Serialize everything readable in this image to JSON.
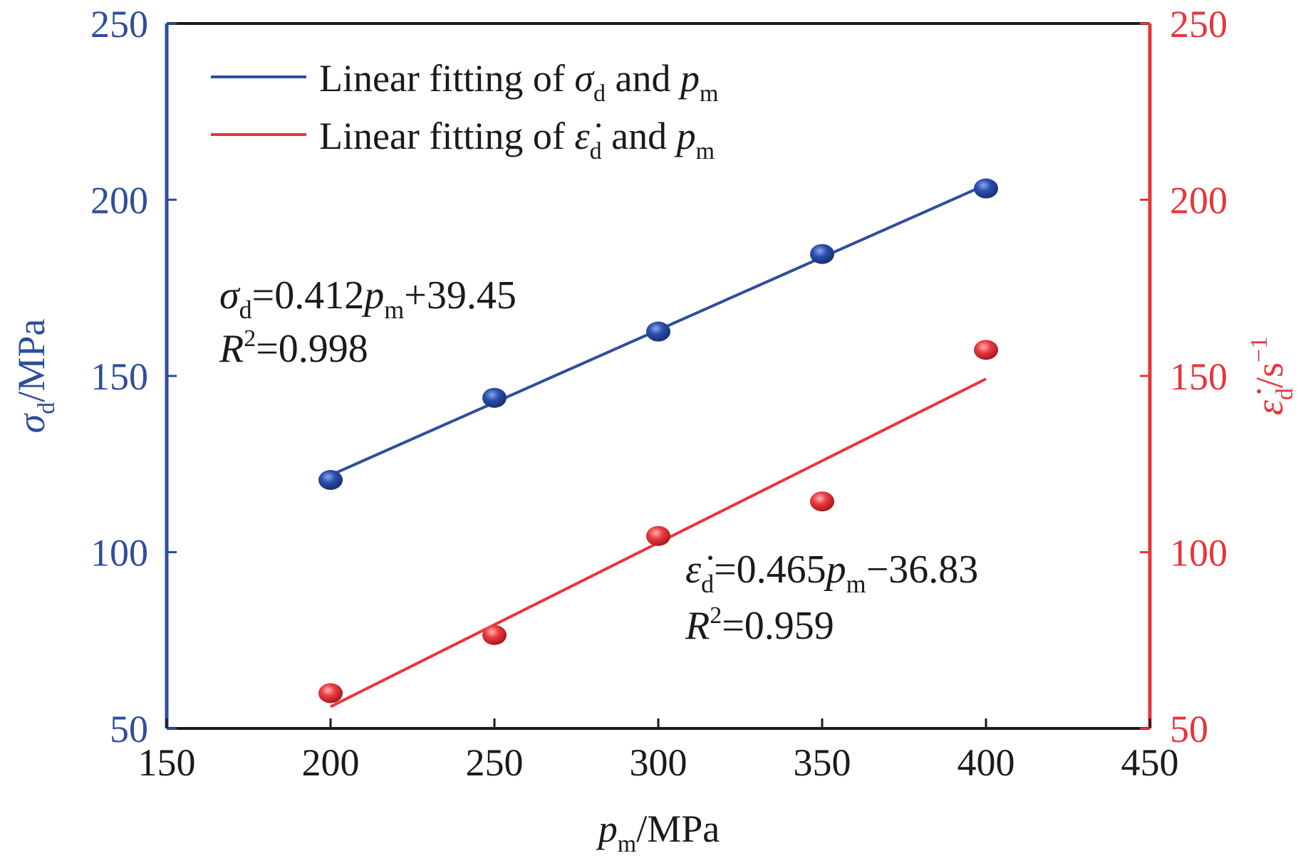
{
  "chart_data": {
    "type": "scatter",
    "x_axis": {
      "label_main": "p",
      "label_sub": "m",
      "label_unit": "/MPa",
      "lim": [
        150,
        450
      ],
      "ticks": [
        150,
        200,
        250,
        300,
        350,
        400,
        450
      ]
    },
    "y_axis_left": {
      "label_main": "σ",
      "label_sub": "d",
      "label_unit": "/MPa",
      "lim": [
        50,
        250
      ],
      "ticks": [
        50,
        100,
        150,
        200,
        250
      ],
      "color": "#2e4e9c"
    },
    "y_axis_right": {
      "label_main": "ε̇",
      "label_sub": "d",
      "label_unit": "/s",
      "label_sup": "−1",
      "lim": [
        50,
        250
      ],
      "ticks": [
        50,
        100,
        150,
        200,
        250
      ],
      "color": "#e8353a"
    },
    "series": [
      {
        "axis": "left",
        "color": "#2e4e9c",
        "x": [
          200,
          250,
          300,
          350,
          400
        ],
        "y": [
          120.5,
          143.8,
          162.6,
          184.6,
          203.2
        ],
        "fit": {
          "slope": 0.412,
          "intercept": 39.45
        }
      },
      {
        "axis": "right",
        "color": "#e8353a",
        "x": [
          200,
          250,
          300,
          350,
          400
        ],
        "y": [
          60.0,
          76.5,
          104.6,
          114.4,
          157.4
        ],
        "fit": {
          "slope": 0.465,
          "intercept": -36.83
        }
      }
    ],
    "legend": {
      "placement": "top-left",
      "entries": [
        {
          "prefix": "Linear fitting of ",
          "sym": "σ",
          "sym_sub": "d",
          "mid": " and ",
          "sym2": "p",
          "sym2_sub": "m",
          "color": "#2e4e9c"
        },
        {
          "prefix": "Linear fitting of ",
          "sym": "ε̇",
          "sym_sub": "d",
          "mid": " and ",
          "sym2": "p",
          "sym2_sub": "m",
          "color": "#e8353a"
        }
      ]
    },
    "annotations": [
      {
        "eq_sym": "σ",
        "eq_sub": "d",
        "eq_mid": "=0.412",
        "eq_sym2": "p",
        "eq_sub2": "m",
        "eq_tail": "+39.45",
        "r_sym": "R",
        "r_sup": "2",
        "r_tail": "=0.998"
      },
      {
        "eq_sym": "ε̇",
        "eq_sub": "d",
        "eq_mid": "=0.465",
        "eq_sym2": "p",
        "eq_sub2": "m",
        "eq_tail": "−36.83",
        "r_sym": "R",
        "r_sup": "2",
        "r_tail": "=0.959"
      }
    ],
    "grid": false
  }
}
